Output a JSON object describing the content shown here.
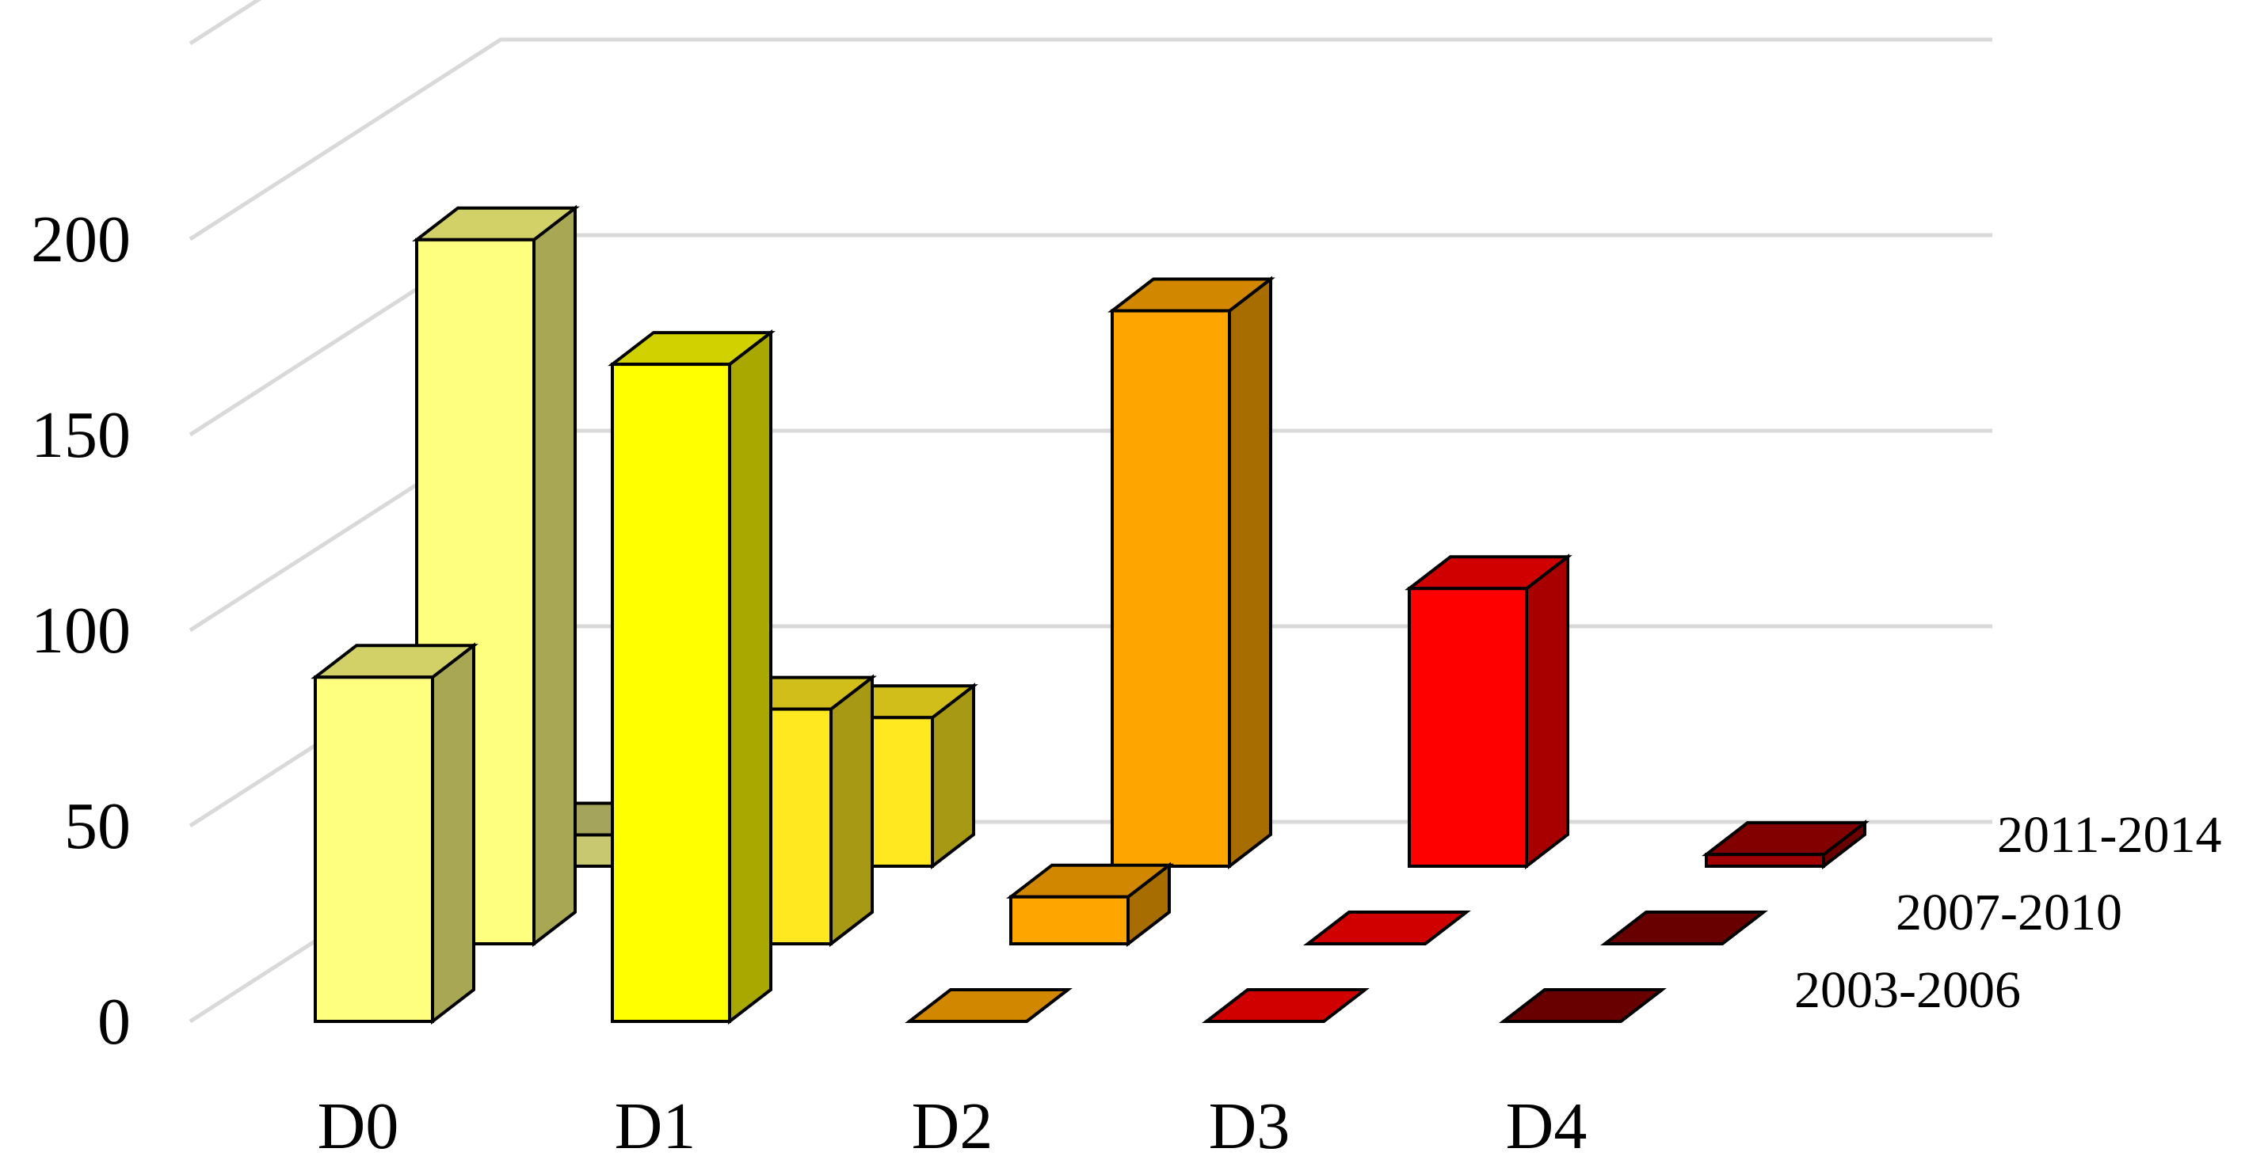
{
  "chart_data": {
    "type": "bar",
    "subtype": "3d-column",
    "title": "",
    "xlabel": "",
    "ylabel": "",
    "categories": [
      "D0",
      "D1",
      "D2",
      "D3",
      "D4"
    ],
    "series": [
      {
        "name": "2003-2006",
        "values": [
          88,
          168,
          0,
          0,
          0
        ]
      },
      {
        "name": "2007-2010",
        "values": [
          180,
          60,
          12,
          0,
          0
        ]
      },
      {
        "name": "2011-2014",
        "values": [
          8,
          38,
          142,
          71,
          3
        ]
      }
    ],
    "ylim": [
      0,
      250
    ],
    "yticks": [
      0,
      50,
      100,
      150,
      200
    ],
    "grid": true,
    "legend": "series labels along right depth axis",
    "colors": {
      "2003-2006": [
        "#FFFF7F",
        "#FFFF00",
        "#FFA500",
        "#FF0000",
        "#800000"
      ],
      "2007-2010": [
        "#FFFF7F",
        "#FFE820",
        "#FFA500",
        "#FF0000",
        "#800000"
      ],
      "2011-2014": [
        "#C8C870",
        "#FFE820",
        "#FFA500",
        "#FF0000",
        "#A00000"
      ]
    },
    "gridline_color": "#d9d9d9"
  }
}
